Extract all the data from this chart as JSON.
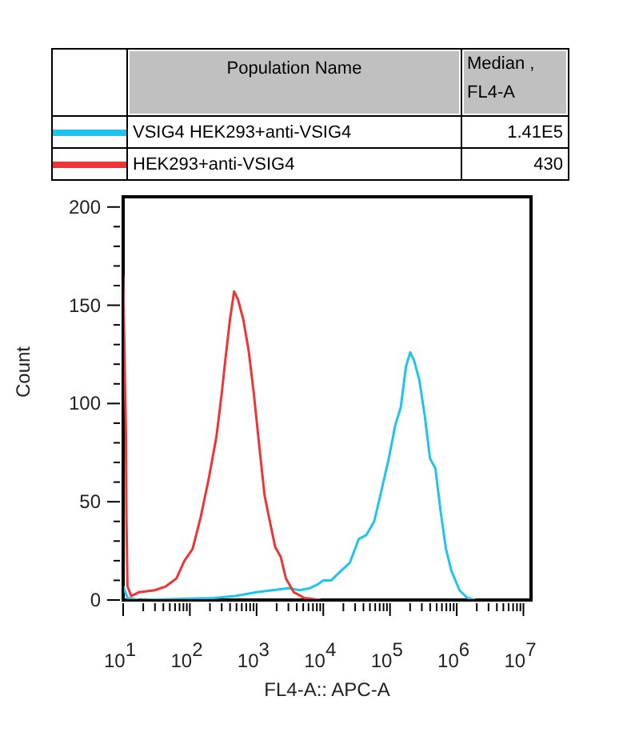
{
  "chart_data": {
    "type": "line",
    "xlabel": "FL4-A:: APC-A",
    "ylabel": "Count",
    "legend_title": "Population Name",
    "legend": "top",
    "log": "x",
    "marker": "none",
    "line_style": "solid",
    "annotations": [
      "Median , FL4-A",
      "1.41E5",
      "430"
    ],
    "xlim": [
      10,
      13000000
    ],
    "ylim": [
      0,
      206
    ],
    "xticks": [
      {
        "value": 10,
        "label": "10$^{1}$"
      },
      {
        "value": 20,
        "label": null
      },
      {
        "value": 30,
        "label": null
      },
      {
        "value": 40,
        "label": null
      },
      {
        "value": 50,
        "label": null
      },
      {
        "value": 60,
        "label": null
      },
      {
        "value": 70,
        "label": null
      },
      {
        "value": 80,
        "label": null
      },
      {
        "value": 90,
        "label": null
      },
      {
        "value": 100,
        "label": "10$^{2}$"
      },
      {
        "value": 200,
        "label": null
      },
      {
        "value": 300,
        "label": null
      },
      {
        "value": 400,
        "label": null
      },
      {
        "value": 500,
        "label": null
      },
      {
        "value": 600,
        "label": null
      },
      {
        "value": 700,
        "label": null
      },
      {
        "value": 800,
        "label": null
      },
      {
        "value": 900,
        "label": null
      },
      {
        "value": 1000,
        "label": "10$^{3}$"
      },
      {
        "value": 2000,
        "label": null
      },
      {
        "value": 3000,
        "label": null
      },
      {
        "value": 4000,
        "label": null
      },
      {
        "value": 5000,
        "label": null
      },
      {
        "value": 6000,
        "label": null
      },
      {
        "value": 7000,
        "label": null
      },
      {
        "value": 8000,
        "label": null
      },
      {
        "value": 9000,
        "label": null
      },
      {
        "value": 10000,
        "label": "10$^{4}$"
      },
      {
        "value": 20000,
        "label": null
      },
      {
        "value": 30000,
        "label": null
      },
      {
        "value": 40000,
        "label": null
      },
      {
        "value": 50000,
        "label": null
      },
      {
        "value": 60000,
        "label": null
      },
      {
        "value": 70000,
        "label": null
      },
      {
        "value": 80000,
        "label": null
      },
      {
        "value": 90000,
        "label": null
      },
      {
        "value": 100000,
        "label": "10$^{5}$"
      },
      {
        "value": 200000,
        "label": null
      },
      {
        "value": 300000,
        "label": null
      },
      {
        "value": 400000,
        "label": null
      },
      {
        "value": 500000,
        "label": null
      },
      {
        "value": 600000,
        "label": null
      },
      {
        "value": 700000,
        "label": null
      },
      {
        "value": 800000,
        "label": null
      },
      {
        "value": 900000,
        "label": null
      },
      {
        "value": 1000000,
        "label": "10$^{6}$"
      },
      {
        "value": 2000000,
        "label": null
      },
      {
        "value": 3000000,
        "label": null
      },
      {
        "value": 4000000,
        "label": null
      },
      {
        "value": 5000000,
        "label": null
      },
      {
        "value": 6000000,
        "label": null
      },
      {
        "value": 7000000,
        "label": null
      },
      {
        "value": 8000000,
        "label": null
      },
      {
        "value": 9000000,
        "label": null
      },
      {
        "value": 10000000,
        "label": "10$^{7}$"
      }
    ],
    "yticks": [
      0,
      {
        "value": 10,
        "label": null
      },
      {
        "value": 20,
        "label": null
      },
      {
        "value": 30,
        "label": null
      },
      {
        "value": 40,
        "label": null
      },
      50,
      {
        "value": 60,
        "label": null
      },
      {
        "value": 70,
        "label": null
      },
      {
        "value": 80,
        "label": null
      },
      {
        "value": 90,
        "label": null
      },
      100,
      {
        "value": 110,
        "label": null
      },
      {
        "value": 120,
        "label": null
      },
      {
        "value": 130,
        "label": null
      },
      {
        "value": 140,
        "label": null
      },
      150,
      {
        "value": 160,
        "label": null
      },
      {
        "value": 170,
        "label": null
      },
      {
        "value": 180,
        "label": null
      },
      {
        "value": 190,
        "label": null
      },
      200
    ],
    "series": [
      {
        "name": "VSIG4 HEK293+anti-VSIG4",
        "color": "#1ec4f0",
        "x": [
          10,
          11.6,
          17.4,
          230,
          480,
          1000,
          1740,
          3000,
          4400,
          6300,
          8300,
          10000,
          13200,
          17400,
          25000,
          34000,
          44000,
          58000,
          76000,
          96000,
          120000,
          145000,
          174000,
          201000,
          229000,
          275000,
          331000,
          398000,
          479000,
          575000,
          690000,
          830000,
          1100000,
          1450000,
          1900000
        ],
        "values": [
          7,
          1,
          0,
          1,
          2,
          4,
          5,
          6,
          5,
          6,
          8,
          10,
          10,
          14,
          19,
          31,
          33,
          40,
          57,
          72,
          89,
          98,
          119,
          126,
          122,
          112,
          94,
          72,
          67,
          45,
          26,
          15,
          5,
          1,
          0
        ]
      },
      {
        "name": "HEK293+anti-VSIG4",
        "color": "#f03434",
        "x": [
          10,
          11,
          11.2,
          11.6,
          13.2,
          17.4,
          30,
          44,
          63,
          83,
          110,
          145,
          190,
          250,
          300,
          345,
          400,
          460,
          525,
          630,
          760,
          910,
          1100,
          1320,
          1580,
          1900,
          2300,
          2750,
          3600,
          5200,
          9100
        ],
        "values": [
          165,
          85,
          42,
          7,
          2,
          4,
          5,
          7,
          11,
          20,
          26,
          42,
          61,
          83,
          105,
          124,
          143,
          157,
          153,
          143,
          127,
          105,
          78,
          53,
          40,
          27,
          22,
          11,
          4,
          1,
          0
        ]
      }
    ]
  }
}
